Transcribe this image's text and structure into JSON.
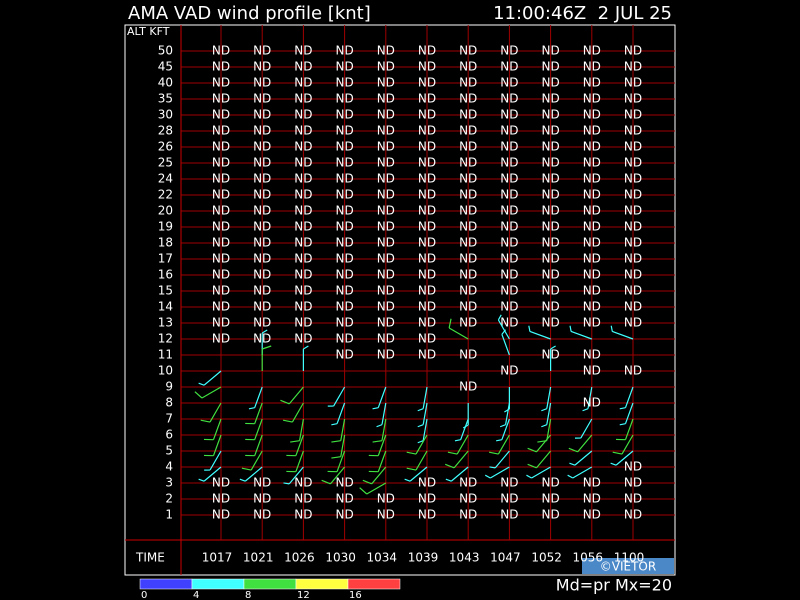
{
  "header": {
    "title": "AMA VAD wind profile [knt]",
    "time": "11:00:46Z  2 JUL 25"
  },
  "axis": {
    "alt_label": "ALT KFT",
    "time_label": "TIME",
    "altitudes": [
      50,
      45,
      40,
      35,
      30,
      28,
      26,
      25,
      24,
      22,
      20,
      19,
      18,
      17,
      16,
      15,
      14,
      13,
      12,
      11,
      10,
      9,
      8,
      7,
      6,
      5,
      4,
      3,
      2,
      1
    ],
    "times": [
      "1017",
      "1021",
      "1026",
      "1030",
      "1034",
      "1039",
      "1043",
      "1047",
      "1052",
      "1056",
      "1100"
    ]
  },
  "cells": [
    [
      "ND",
      "ND",
      "ND",
      "ND",
      "ND",
      "ND",
      "ND",
      "ND",
      "ND",
      "ND",
      "ND"
    ],
    [
      "ND",
      "ND",
      "ND",
      "ND",
      "ND",
      "ND",
      "ND",
      "ND",
      "ND",
      "ND",
      "ND"
    ],
    [
      "ND",
      "ND",
      "ND",
      "ND",
      "ND",
      "ND",
      "ND",
      "ND",
      "ND",
      "ND",
      "ND"
    ],
    [
      "ND",
      "ND",
      "ND",
      "ND",
      "ND",
      "ND",
      "ND",
      "ND",
      "ND",
      "ND",
      "ND"
    ],
    [
      "ND",
      "ND",
      "ND",
      "ND",
      "ND",
      "ND",
      "ND",
      "ND",
      "ND",
      "ND",
      "ND"
    ],
    [
      "ND",
      "ND",
      "ND",
      "ND",
      "ND",
      "ND",
      "ND",
      "ND",
      "ND",
      "ND",
      "ND"
    ],
    [
      "ND",
      "ND",
      "ND",
      "ND",
      "ND",
      "ND",
      "ND",
      "ND",
      "ND",
      "ND",
      "ND"
    ],
    [
      "ND",
      "ND",
      "ND",
      "ND",
      "ND",
      "ND",
      "ND",
      "ND",
      "ND",
      "ND",
      "ND"
    ],
    [
      "ND",
      "ND",
      "ND",
      "ND",
      "ND",
      "ND",
      "ND",
      "ND",
      "ND",
      "ND",
      "ND"
    ],
    [
      "ND",
      "ND",
      "ND",
      "ND",
      "ND",
      "ND",
      "ND",
      "ND",
      "ND",
      "ND",
      "ND"
    ],
    [
      "ND",
      "ND",
      "ND",
      "ND",
      "ND",
      "ND",
      "ND",
      "ND",
      "ND",
      "ND",
      "ND"
    ],
    [
      "ND",
      "ND",
      "ND",
      "ND",
      "ND",
      "ND",
      "ND",
      "ND",
      "ND",
      "ND",
      "ND"
    ],
    [
      "ND",
      "ND",
      "ND",
      "ND",
      "ND",
      "ND",
      "ND",
      "ND",
      "ND",
      "ND",
      "ND"
    ],
    [
      "ND",
      "ND",
      "ND",
      "ND",
      "ND",
      "ND",
      "ND",
      "ND",
      "ND",
      "ND",
      "ND"
    ],
    [
      "ND",
      "ND",
      "ND",
      "ND",
      "ND",
      "ND",
      "ND",
      "ND",
      "ND",
      "ND",
      "ND"
    ],
    [
      "ND",
      "ND",
      "ND",
      "ND",
      "ND",
      "ND",
      "ND",
      "ND",
      "ND",
      "ND",
      "ND"
    ],
    [
      "ND",
      "ND",
      "ND",
      "ND",
      "ND",
      "ND",
      "ND",
      "ND",
      "ND",
      "ND",
      "ND"
    ],
    [
      "ND",
      "ND",
      "ND",
      "ND",
      "ND",
      "ND",
      "ND",
      "ND",
      "ND",
      "ND",
      "ND"
    ],
    [
      "ND",
      "ND",
      "ND",
      "ND",
      "ND",
      "ND",
      {
        "dir": 300,
        "spd": 8
      },
      {
        "dir": 330,
        "spd": 6
      },
      {
        "dir": 290,
        "spd": 7
      },
      {
        "dir": 290,
        "spd": 6
      },
      {
        "dir": 290,
        "spd": 7
      }
    ],
    [
      null,
      {
        "dir": 0,
        "spd": 6
      },
      null,
      "ND",
      "ND",
      "ND",
      "ND",
      {
        "dir": 340,
        "spd": 6
      },
      "ND",
      "ND",
      null
    ],
    [
      {
        "dir": 230,
        "spd": 7
      },
      {
        "dir": 0,
        "spd": 8
      },
      {
        "dir": 0,
        "spd": 6
      },
      null,
      null,
      null,
      null,
      "ND",
      {
        "dir": 0,
        "spd": 5
      },
      "ND",
      "ND"
    ],
    [
      {
        "dir": 240,
        "spd": 8
      },
      {
        "dir": 200,
        "spd": 7
      },
      {
        "dir": 220,
        "spd": 8
      },
      {
        "dir": 210,
        "spd": 6
      },
      {
        "dir": 200,
        "spd": 7
      },
      {
        "dir": 190,
        "spd": 6
      },
      "ND",
      {
        "dir": 180,
        "spd": 5
      },
      {
        "dir": 190,
        "spd": 6
      },
      {
        "dir": 190,
        "spd": 6
      },
      {
        "dir": 200,
        "spd": 5
      }
    ],
    [
      {
        "dir": 210,
        "spd": 9
      },
      {
        "dir": 200,
        "spd": 8
      },
      {
        "dir": 210,
        "spd": 9
      },
      {
        "dir": 200,
        "spd": 7
      },
      {
        "dir": 190,
        "spd": 7
      },
      {
        "dir": 190,
        "spd": 6
      },
      {
        "dir": 180,
        "spd": 6
      },
      {
        "dir": 190,
        "spd": 5
      },
      {
        "dir": 190,
        "spd": 6
      },
      "ND",
      {
        "dir": 200,
        "spd": 7
      }
    ],
    [
      {
        "dir": 200,
        "spd": 9
      },
      {
        "dir": 200,
        "spd": 10
      },
      {
        "dir": 190,
        "spd": 9
      },
      {
        "dir": 190,
        "spd": 8
      },
      {
        "dir": 190,
        "spd": 8
      },
      {
        "dir": 190,
        "spd": 7
      },
      {
        "dir": 200,
        "spd": 7
      },
      {
        "dir": 200,
        "spd": 6
      },
      {
        "dir": 190,
        "spd": 8
      },
      {
        "dir": 210,
        "spd": 7
      },
      {
        "dir": 200,
        "spd": 8
      }
    ],
    [
      {
        "dir": 200,
        "spd": 8
      },
      {
        "dir": 200,
        "spd": 9
      },
      {
        "dir": 200,
        "spd": 9
      },
      {
        "dir": 190,
        "spd": 10
      },
      {
        "dir": 200,
        "spd": 10
      },
      {
        "dir": 210,
        "spd": 9
      },
      {
        "dir": 210,
        "spd": 8
      },
      {
        "dir": 210,
        "spd": 8
      },
      {
        "dir": 220,
        "spd": 9
      },
      {
        "dir": 220,
        "spd": 9
      },
      {
        "dir": 210,
        "spd": 8
      }
    ],
    [
      {
        "dir": 210,
        "spd": 7
      },
      {
        "dir": 210,
        "spd": 8
      },
      {
        "dir": 200,
        "spd": 8
      },
      {
        "dir": 200,
        "spd": 9
      },
      {
        "dir": 200,
        "spd": 9
      },
      {
        "dir": 210,
        "spd": 8
      },
      {
        "dir": 220,
        "spd": 8
      },
      {
        "dir": 220,
        "spd": 7
      },
      {
        "dir": 220,
        "spd": 8
      },
      {
        "dir": 230,
        "spd": 7
      },
      {
        "dir": 230,
        "spd": 7
      }
    ],
    [
      {
        "dir": 230,
        "spd": 6
      },
      {
        "dir": 230,
        "spd": 7
      },
      {
        "dir": 220,
        "spd": 7
      },
      {
        "dir": 220,
        "spd": 8
      },
      {
        "dir": 220,
        "spd": 8
      },
      {
        "dir": 230,
        "spd": 7
      },
      {
        "dir": 230,
        "spd": 7
      },
      {
        "dir": 240,
        "spd": 6
      },
      {
        "dir": 240,
        "spd": 7
      },
      {
        "dir": 240,
        "spd": 6
      },
      "ND"
    ],
    [
      "ND",
      "ND",
      "ND",
      "ND",
      {
        "dir": 240,
        "spd": 9
      },
      "ND",
      "ND",
      "ND",
      "ND",
      "ND",
      "ND"
    ],
    [
      "ND",
      "ND",
      "ND",
      "ND",
      "ND",
      "ND",
      "ND",
      "ND",
      "ND",
      "ND",
      "ND"
    ],
    [
      "ND",
      "ND",
      "ND",
      "ND",
      "ND",
      "ND",
      "ND",
      "ND",
      "ND",
      "ND",
      "ND"
    ]
  ],
  "legend": {
    "colors": [
      "#4040ff",
      "#40ffff",
      "#40e040",
      "#ffff40",
      "#ff4040"
    ],
    "ticks": [
      0,
      4,
      8,
      12,
      16
    ]
  },
  "footer": {
    "credit": "©VIETOR",
    "mode": "Md=pr Mx=20"
  }
}
